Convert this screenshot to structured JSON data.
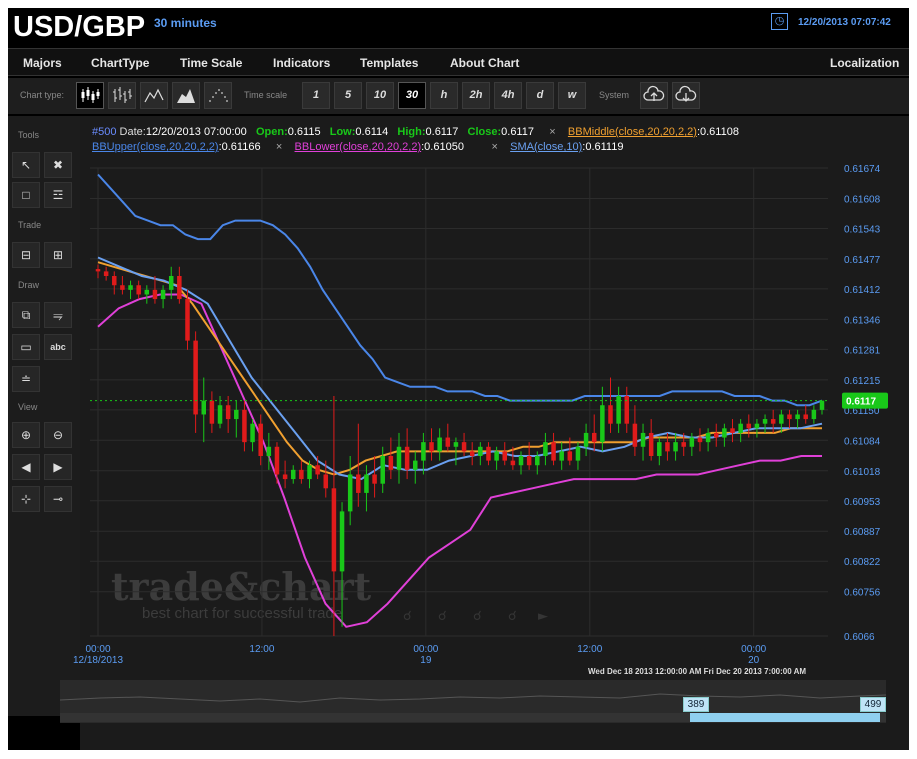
{
  "header": {
    "symbol": "USD/GBP",
    "interval": "30 minutes",
    "datetime": "12/20/2013 07:07:42",
    "clock_icon": "clock-icon"
  },
  "menu": [
    "Majors",
    "ChartType",
    "Time Scale",
    "Indicators",
    "Templates",
    "About Chart"
  ],
  "localization": "Localization",
  "toolbar": {
    "chart_type_label": "Chart type:",
    "time_scale_label": "Time scale",
    "system_label": "System",
    "time_scales": [
      "1",
      "5",
      "10",
      "30",
      "h",
      "2h",
      "4h",
      "d",
      "w"
    ],
    "active_time_scale": "30",
    "chart_type_icons": [
      "candlestick-icon",
      "ohlc-bar-icon",
      "line-chart-icon",
      "area-chart-icon",
      "dot-chart-icon"
    ],
    "system_icons": [
      "upload-icon",
      "download-icon"
    ]
  },
  "sidebar": {
    "tools": "Tools",
    "trade": "Trade",
    "draw": "Draw",
    "view": "View",
    "draw_text_button": "abc"
  },
  "legend": {
    "id": "#500",
    "date_label": "Date:",
    "date": "12/20/2013 07:00:00",
    "open_label": "Open:",
    "open": "0.6115",
    "low_label": "Low:",
    "low": "0.6114",
    "high_label": "High:",
    "high": "0.6117",
    "close_label": "Close:",
    "close": "0.6117",
    "bbmiddle_label": "BBMiddle(close,20,20,2,2)",
    "bbmiddle": ":0.61108",
    "bbupper_label": "BBUpper(close,20,20,2,2)",
    "bbupper": ":0.61166",
    "bblower_label": "BBLower(close,20,20,2,2)",
    "bblower": ":0.61050",
    "sma_label": "SMA(close,10)",
    "sma": ":0.61119",
    "remove_mark": "×"
  },
  "watermark": {
    "line1": "trade&chart",
    "line2": "best chart for successful trade"
  },
  "navigator": {
    "range_text": "Wed Dec 18 2013 12:00:00 AM   Fri Dec 20 2013 7:00:00 AM",
    "left_handle": "389",
    "right_handle": "499"
  },
  "colors": {
    "up": "#19c819",
    "down": "#e01b1b",
    "bbupper": "#4a86e8",
    "bblower": "#e040d8",
    "bbmiddle": "#f0a030",
    "sma": "#6aa0f0",
    "axis_text": "#5b9cf3",
    "price_tag": "#19c819"
  },
  "chart_data": {
    "type": "candlestick",
    "price_ticks": [
      "0.61674",
      "0.61608",
      "0.61543",
      "0.61477",
      "0.61412",
      "0.61346",
      "0.61281",
      "0.61215",
      "0.61150",
      "0.61084",
      "0.61018",
      "0.60953",
      "0.60887",
      "0.60822",
      "0.60756",
      "0.6066"
    ],
    "ylim": [
      0.6066,
      0.61674
    ],
    "current_price": "0.6117",
    "x_ticks": [
      {
        "time": "00:00",
        "date": "12/18/2013",
        "index": 0
      },
      {
        "time": "12:00",
        "date": "",
        "index": 24
      },
      {
        "time": "00:00",
        "date": "19",
        "index": 48
      },
      {
        "time": "12:00",
        "date": "",
        "index": 72
      },
      {
        "time": "00:00",
        "date": "20",
        "index": 96
      }
    ],
    "bars": [
      {
        "o": 0.61455,
        "h": 0.61465,
        "l": 0.61435,
        "c": 0.6145
      },
      {
        "o": 0.6145,
        "h": 0.6146,
        "l": 0.6143,
        "c": 0.6144
      },
      {
        "o": 0.6144,
        "h": 0.6145,
        "l": 0.614,
        "c": 0.6142
      },
      {
        "o": 0.6142,
        "h": 0.6144,
        "l": 0.614,
        "c": 0.6141
      },
      {
        "o": 0.6141,
        "h": 0.6143,
        "l": 0.6139,
        "c": 0.6142
      },
      {
        "o": 0.6142,
        "h": 0.6143,
        "l": 0.6139,
        "c": 0.614
      },
      {
        "o": 0.614,
        "h": 0.6142,
        "l": 0.6138,
        "c": 0.6141
      },
      {
        "o": 0.6141,
        "h": 0.6144,
        "l": 0.6138,
        "c": 0.6139
      },
      {
        "o": 0.6139,
        "h": 0.6142,
        "l": 0.6137,
        "c": 0.6141
      },
      {
        "o": 0.6141,
        "h": 0.6146,
        "l": 0.6139,
        "c": 0.6144
      },
      {
        "o": 0.6144,
        "h": 0.6146,
        "l": 0.6138,
        "c": 0.6139
      },
      {
        "o": 0.6139,
        "h": 0.6141,
        "l": 0.6128,
        "c": 0.613
      },
      {
        "o": 0.613,
        "h": 0.6132,
        "l": 0.611,
        "c": 0.6114
      },
      {
        "o": 0.6114,
        "h": 0.6122,
        "l": 0.6108,
        "c": 0.6117
      },
      {
        "o": 0.6117,
        "h": 0.6119,
        "l": 0.611,
        "c": 0.6112
      },
      {
        "o": 0.6112,
        "h": 0.6118,
        "l": 0.6111,
        "c": 0.6116
      },
      {
        "o": 0.6116,
        "h": 0.6118,
        "l": 0.611,
        "c": 0.6113
      },
      {
        "o": 0.6113,
        "h": 0.6117,
        "l": 0.6109,
        "c": 0.6115
      },
      {
        "o": 0.6115,
        "h": 0.6117,
        "l": 0.6106,
        "c": 0.6108
      },
      {
        "o": 0.6108,
        "h": 0.6113,
        "l": 0.6106,
        "c": 0.6112
      },
      {
        "o": 0.6112,
        "h": 0.6114,
        "l": 0.6103,
        "c": 0.6105
      },
      {
        "o": 0.6105,
        "h": 0.611,
        "l": 0.6102,
        "c": 0.6107
      },
      {
        "o": 0.6107,
        "h": 0.6108,
        "l": 0.6099,
        "c": 0.6101
      },
      {
        "o": 0.6101,
        "h": 0.6104,
        "l": 0.6098,
        "c": 0.61
      },
      {
        "o": 0.61,
        "h": 0.6103,
        "l": 0.6099,
        "c": 0.6102
      },
      {
        "o": 0.6102,
        "h": 0.6104,
        "l": 0.6099,
        "c": 0.61
      },
      {
        "o": 0.61,
        "h": 0.6104,
        "l": 0.6098,
        "c": 0.6103
      },
      {
        "o": 0.6103,
        "h": 0.6105,
        "l": 0.61,
        "c": 0.6101
      },
      {
        "o": 0.6101,
        "h": 0.6104,
        "l": 0.6096,
        "c": 0.6098
      },
      {
        "o": 0.6098,
        "h": 0.6118,
        "l": 0.6066,
        "c": 0.608
      },
      {
        "o": 0.608,
        "h": 0.6095,
        "l": 0.6068,
        "c": 0.6093
      },
      {
        "o": 0.6093,
        "h": 0.6105,
        "l": 0.609,
        "c": 0.6101
      },
      {
        "o": 0.6101,
        "h": 0.6112,
        "l": 0.6094,
        "c": 0.6097
      },
      {
        "o": 0.6097,
        "h": 0.6103,
        "l": 0.6093,
        "c": 0.6101
      },
      {
        "o": 0.6101,
        "h": 0.6105,
        "l": 0.6096,
        "c": 0.6099
      },
      {
        "o": 0.6099,
        "h": 0.6107,
        "l": 0.6097,
        "c": 0.6105
      },
      {
        "o": 0.6105,
        "h": 0.6109,
        "l": 0.61,
        "c": 0.6102
      },
      {
        "o": 0.6102,
        "h": 0.611,
        "l": 0.6099,
        "c": 0.6107
      },
      {
        "o": 0.6107,
        "h": 0.6111,
        "l": 0.61,
        "c": 0.6102
      },
      {
        "o": 0.6102,
        "h": 0.6106,
        "l": 0.6099,
        "c": 0.6104
      },
      {
        "o": 0.6104,
        "h": 0.611,
        "l": 0.6101,
        "c": 0.6108
      },
      {
        "o": 0.6108,
        "h": 0.6111,
        "l": 0.6104,
        "c": 0.6106
      },
      {
        "o": 0.6106,
        "h": 0.6111,
        "l": 0.6104,
        "c": 0.6109
      },
      {
        "o": 0.6109,
        "h": 0.6112,
        "l": 0.6106,
        "c": 0.6107
      },
      {
        "o": 0.6107,
        "h": 0.6109,
        "l": 0.6103,
        "c": 0.6108
      },
      {
        "o": 0.6108,
        "h": 0.611,
        "l": 0.6105,
        "c": 0.6106
      },
      {
        "o": 0.6106,
        "h": 0.6108,
        "l": 0.6103,
        "c": 0.6105
      },
      {
        "o": 0.6105,
        "h": 0.6108,
        "l": 0.6103,
        "c": 0.6107
      },
      {
        "o": 0.6107,
        "h": 0.6108,
        "l": 0.6103,
        "c": 0.6104
      },
      {
        "o": 0.6104,
        "h": 0.6107,
        "l": 0.6102,
        "c": 0.6106
      },
      {
        "o": 0.6106,
        "h": 0.6108,
        "l": 0.6103,
        "c": 0.6104
      },
      {
        "o": 0.6104,
        "h": 0.6107,
        "l": 0.6102,
        "c": 0.6103
      },
      {
        "o": 0.6103,
        "h": 0.6106,
        "l": 0.6101,
        "c": 0.6105
      },
      {
        "o": 0.6105,
        "h": 0.6108,
        "l": 0.6102,
        "c": 0.6103
      },
      {
        "o": 0.6103,
        "h": 0.6106,
        "l": 0.6101,
        "c": 0.6105
      },
      {
        "o": 0.6105,
        "h": 0.611,
        "l": 0.6103,
        "c": 0.6108
      },
      {
        "o": 0.6108,
        "h": 0.611,
        "l": 0.6103,
        "c": 0.6104
      },
      {
        "o": 0.6104,
        "h": 0.6108,
        "l": 0.6102,
        "c": 0.6106
      },
      {
        "o": 0.6106,
        "h": 0.6109,
        "l": 0.6103,
        "c": 0.6104
      },
      {
        "o": 0.6104,
        "h": 0.6108,
        "l": 0.6102,
        "c": 0.6107
      },
      {
        "o": 0.6107,
        "h": 0.6112,
        "l": 0.6105,
        "c": 0.611
      },
      {
        "o": 0.611,
        "h": 0.6114,
        "l": 0.6106,
        "c": 0.6108
      },
      {
        "o": 0.6108,
        "h": 0.612,
        "l": 0.6106,
        "c": 0.6116
      },
      {
        "o": 0.6116,
        "h": 0.6122,
        "l": 0.611,
        "c": 0.6112
      },
      {
        "o": 0.6112,
        "h": 0.612,
        "l": 0.611,
        "c": 0.6118
      },
      {
        "o": 0.6118,
        "h": 0.612,
        "l": 0.611,
        "c": 0.6112
      },
      {
        "o": 0.6112,
        "h": 0.6116,
        "l": 0.6105,
        "c": 0.6107
      },
      {
        "o": 0.6107,
        "h": 0.6112,
        "l": 0.6104,
        "c": 0.611
      },
      {
        "o": 0.611,
        "h": 0.6113,
        "l": 0.6104,
        "c": 0.6105
      },
      {
        "o": 0.6105,
        "h": 0.6109,
        "l": 0.6103,
        "c": 0.6108
      },
      {
        "o": 0.6108,
        "h": 0.611,
        "l": 0.6104,
        "c": 0.6106
      },
      {
        "o": 0.6106,
        "h": 0.611,
        "l": 0.6104,
        "c": 0.6108
      },
      {
        "o": 0.6108,
        "h": 0.611,
        "l": 0.6105,
        "c": 0.6107
      },
      {
        "o": 0.6107,
        "h": 0.611,
        "l": 0.6105,
        "c": 0.6109
      },
      {
        "o": 0.6109,
        "h": 0.6111,
        "l": 0.6106,
        "c": 0.6108
      },
      {
        "o": 0.6108,
        "h": 0.6111,
        "l": 0.6106,
        "c": 0.611
      },
      {
        "o": 0.611,
        "h": 0.6112,
        "l": 0.6107,
        "c": 0.6109
      },
      {
        "o": 0.6109,
        "h": 0.6112,
        "l": 0.6107,
        "c": 0.6111
      },
      {
        "o": 0.6111,
        "h": 0.6113,
        "l": 0.6108,
        "c": 0.611
      },
      {
        "o": 0.611,
        "h": 0.6113,
        "l": 0.6108,
        "c": 0.6112
      },
      {
        "o": 0.6112,
        "h": 0.6114,
        "l": 0.6109,
        "c": 0.6111
      },
      {
        "o": 0.6111,
        "h": 0.6113,
        "l": 0.6109,
        "c": 0.6112
      },
      {
        "o": 0.6112,
        "h": 0.6114,
        "l": 0.611,
        "c": 0.6113
      },
      {
        "o": 0.6113,
        "h": 0.6115,
        "l": 0.611,
        "c": 0.6112
      },
      {
        "o": 0.6112,
        "h": 0.6115,
        "l": 0.611,
        "c": 0.6114
      },
      {
        "o": 0.6114,
        "h": 0.6115,
        "l": 0.6111,
        "c": 0.6113
      },
      {
        "o": 0.6113,
        "h": 0.6115,
        "l": 0.6111,
        "c": 0.6114
      },
      {
        "o": 0.6114,
        "h": 0.6116,
        "l": 0.6112,
        "c": 0.6113
      },
      {
        "o": 0.6113,
        "h": 0.6116,
        "l": 0.6112,
        "c": 0.6115
      },
      {
        "o": 0.6115,
        "h": 0.6117,
        "l": 0.6114,
        "c": 0.6117
      }
    ],
    "bb_upper": [
      0.6166,
      0.6163,
      0.616,
      0.6157,
      0.6156,
      0.6155,
      0.6155,
      0.6153,
      0.6152,
      0.6152,
      0.6155,
      0.6156,
      0.6156,
      0.6156,
      0.6155,
      0.6153,
      0.615,
      0.6146,
      0.6141,
      0.6137,
      0.6133,
      0.6129,
      0.6126,
      0.6122,
      0.6121,
      0.612,
      0.612,
      0.612,
      0.6119,
      0.6119,
      0.6119,
      0.6118,
      0.6118,
      0.6117,
      0.6117,
      0.6117,
      0.6117,
      0.6117,
      0.6117,
      0.6118,
      0.6118,
      0.6118,
      0.6118,
      0.6118,
      0.6118,
      0.6118,
      0.6119,
      0.6119,
      0.6119,
      0.6119,
      0.6119,
      0.6118,
      0.6118,
      0.6118,
      0.6117,
      0.6117,
      0.6116,
      0.6116,
      0.6117
    ],
    "bb_middle": [
      0.6147,
      0.6146,
      0.6145,
      0.6144,
      0.6143,
      0.6142,
      0.6138,
      0.6133,
      0.6128,
      0.6123,
      0.6118,
      0.6113,
      0.6108,
      0.6104,
      0.6102,
      0.6101,
      0.6102,
      0.6104,
      0.6105,
      0.6106,
      0.6106,
      0.6106,
      0.6106,
      0.6106,
      0.6106,
      0.6106,
      0.6106,
      0.6107,
      0.6107,
      0.6108,
      0.6108,
      0.6108,
      0.6108,
      0.6108,
      0.6108,
      0.6109,
      0.6109,
      0.6109,
      0.6109,
      0.611,
      0.611,
      0.611,
      0.611,
      0.611,
      0.6111,
      0.6111,
      0.6111
    ],
    "bb_lower": [
      0.6133,
      0.6137,
      0.6139,
      0.614,
      0.614,
      0.6138,
      0.6128,
      0.6118,
      0.6108,
      0.6096,
      0.6083,
      0.6073,
      0.6068,
      0.6069,
      0.6073,
      0.6078,
      0.6083,
      0.6086,
      0.6089,
      0.6096,
      0.6097,
      0.6098,
      0.6099,
      0.61,
      0.61,
      0.61,
      0.61,
      0.6101,
      0.6101,
      0.6101,
      0.6102,
      0.6103,
      0.6104,
      0.6104,
      0.6105,
      0.6105
    ],
    "sma": [
      0.6148,
      0.6146,
      0.6144,
      0.6143,
      0.6141,
      0.6138,
      0.613,
      0.6122,
      0.6116,
      0.611,
      0.6104,
      0.6101,
      0.61,
      0.6103,
      0.6102,
      0.6102,
      0.6104,
      0.6105,
      0.6106,
      0.6105,
      0.6105,
      0.6106,
      0.6107,
      0.6106,
      0.6107,
      0.6109,
      0.611,
      0.6109,
      0.6109,
      0.611,
      0.6111,
      0.6111,
      0.6111,
      0.6112
    ]
  }
}
